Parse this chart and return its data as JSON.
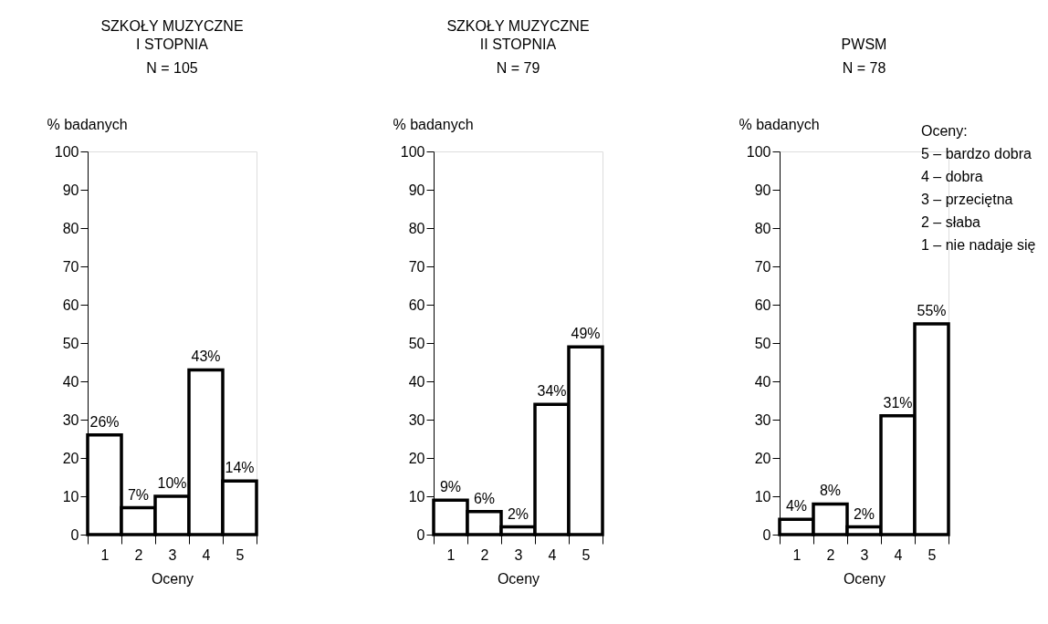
{
  "chart_data": [
    {
      "type": "bar",
      "title": "SZKOŁY MUZYCZNE\nI STOPNIA",
      "subtitle": "N = 105",
      "xlabel": "Oceny",
      "ylabel": "% badanych",
      "categories": [
        "1",
        "2",
        "3",
        "4",
        "5"
      ],
      "values": [
        26,
        7,
        10,
        43,
        14
      ],
      "value_labels": [
        "26%",
        "7%",
        "10%",
        "43%",
        "14%"
      ],
      "color": "#000000",
      "ylim": [
        0,
        100
      ],
      "yticks": [
        0,
        10,
        20,
        30,
        40,
        50,
        60,
        70,
        80,
        90,
        100
      ],
      "grid": false
    },
    {
      "type": "bar",
      "title": "SZKOŁY MUZYCZNE\nII STOPNIA",
      "subtitle": "N = 79",
      "xlabel": "Oceny",
      "ylabel": "% badanych",
      "categories": [
        "1",
        "2",
        "3",
        "4",
        "5"
      ],
      "values": [
        9,
        6,
        2,
        34,
        49
      ],
      "value_labels": [
        "9%",
        "6%",
        "2%",
        "34%",
        "49%"
      ],
      "color": "#000000",
      "ylim": [
        0,
        100
      ],
      "yticks": [
        0,
        10,
        20,
        30,
        40,
        50,
        60,
        70,
        80,
        90,
        100
      ],
      "grid": false
    },
    {
      "type": "bar",
      "title": "PWSM",
      "subtitle": "N = 78",
      "xlabel": "Oceny",
      "ylabel": "% badanych",
      "categories": [
        "1",
        "2",
        "3",
        "4",
        "5"
      ],
      "values": [
        4,
        8,
        2,
        31,
        55
      ],
      "value_labels": [
        "4%",
        "8%",
        "2%",
        "31%",
        "55%"
      ],
      "color": "#000000",
      "ylim": [
        0,
        100
      ],
      "yticks": [
        0,
        10,
        20,
        30,
        40,
        50,
        60,
        70,
        80,
        90,
        100
      ],
      "grid": false,
      "annotations": [
        "Oceny:",
        "5 – bardzo dobra",
        "4 – dobra",
        "3 – przeciętna",
        "2 – słaba",
        "1 – nie nadaje się"
      ]
    }
  ]
}
